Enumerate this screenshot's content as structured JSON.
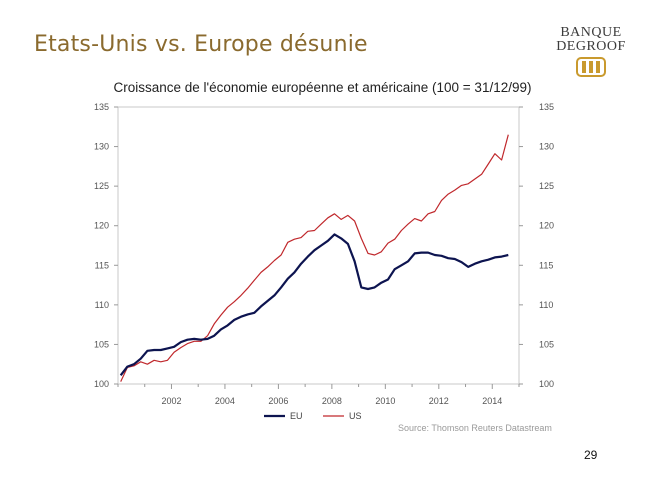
{
  "slide": {
    "title": "Etats-Unis vs. Europe désunie",
    "page_number": "29"
  },
  "logo": {
    "line1": "BANQUE",
    "line2": "DEGROOF",
    "accent_color": "#c99a2e"
  },
  "colors": {
    "title": "#8a6a2e",
    "eu": "#0d1450",
    "us": "#c0282c"
  },
  "chart_data": {
    "type": "line",
    "title": "Croissance de l'économie européenne et américaine (100 = 31/12/99)",
    "xlabel": "",
    "ylabel": "",
    "xlim": [
      2000.0,
      2015.0
    ],
    "ylim": [
      100,
      135
    ],
    "y_ticks": [
      100,
      105,
      110,
      115,
      120,
      125,
      130,
      135
    ],
    "y_tick_labels": [
      "100",
      "105",
      "110",
      "115",
      "120",
      "125",
      "130",
      "135"
    ],
    "x_ticks": [
      2002,
      2004,
      2006,
      2008,
      2010,
      2012,
      2014
    ],
    "x_tick_labels": [
      "2002",
      "2004",
      "2006",
      "2008",
      "2010",
      "2012",
      "2014"
    ],
    "y_axis_both_sides": true,
    "grid": false,
    "legend_position": "bottom-center",
    "source": "Source: Thomson Reuters Datastream",
    "series": [
      {
        "name": "EU",
        "color": "#0d1450",
        "x": [
          2000.1,
          2000.35,
          2000.6,
          2000.85,
          2001.1,
          2001.35,
          2001.6,
          2001.85,
          2002.1,
          2002.35,
          2002.6,
          2002.85,
          2003.1,
          2003.35,
          2003.6,
          2003.85,
          2004.1,
          2004.35,
          2004.6,
          2004.85,
          2005.1,
          2005.35,
          2005.6,
          2005.85,
          2006.1,
          2006.35,
          2006.6,
          2006.85,
          2007.1,
          2007.35,
          2007.6,
          2007.85,
          2008.1,
          2008.35,
          2008.6,
          2008.85,
          2009.1,
          2009.35,
          2009.6,
          2009.85,
          2010.1,
          2010.35,
          2010.6,
          2010.85,
          2011.1,
          2011.35,
          2011.6,
          2011.85,
          2012.1,
          2012.35,
          2012.6,
          2012.85,
          2013.1,
          2013.35,
          2013.6,
          2013.85,
          2014.1,
          2014.35,
          2014.6
        ],
        "values": [
          101.1,
          102.2,
          102.5,
          103.2,
          104.2,
          104.3,
          104.3,
          104.5,
          104.7,
          105.3,
          105.6,
          105.7,
          105.6,
          105.7,
          106.1,
          106.9,
          107.4,
          108.1,
          108.5,
          108.8,
          109.0,
          109.8,
          110.5,
          111.2,
          112.2,
          113.3,
          114.1,
          115.2,
          116.1,
          116.9,
          117.5,
          118.1,
          118.9,
          118.4,
          117.7,
          115.5,
          112.2,
          112.0,
          112.2,
          112.8,
          113.2,
          114.5,
          115.0,
          115.5,
          116.5,
          116.6,
          116.6,
          116.3,
          116.2,
          115.9,
          115.8,
          115.4,
          114.8,
          115.2,
          115.5,
          115.7,
          116.0,
          116.1,
          116.3
        ]
      },
      {
        "name": "US",
        "color": "#c0282c",
        "x": [
          2000.1,
          2000.35,
          2000.6,
          2000.85,
          2001.1,
          2001.35,
          2001.6,
          2001.85,
          2002.1,
          2002.35,
          2002.6,
          2002.85,
          2003.1,
          2003.35,
          2003.6,
          2003.85,
          2004.1,
          2004.35,
          2004.6,
          2004.85,
          2005.1,
          2005.35,
          2005.6,
          2005.85,
          2006.1,
          2006.35,
          2006.6,
          2006.85,
          2007.1,
          2007.35,
          2007.6,
          2007.85,
          2008.1,
          2008.35,
          2008.6,
          2008.85,
          2009.1,
          2009.35,
          2009.6,
          2009.85,
          2010.1,
          2010.35,
          2010.6,
          2010.85,
          2011.1,
          2011.35,
          2011.6,
          2011.85,
          2012.1,
          2012.35,
          2012.6,
          2012.85,
          2013.1,
          2013.35,
          2013.6,
          2013.85,
          2014.1,
          2014.35,
          2014.6
        ],
        "values": [
          100.3,
          102.1,
          102.3,
          102.8,
          102.5,
          103.0,
          102.8,
          103.0,
          104.0,
          104.6,
          105.1,
          105.4,
          105.4,
          106.1,
          107.6,
          108.7,
          109.7,
          110.4,
          111.2,
          112.1,
          113.1,
          114.1,
          114.8,
          115.6,
          116.3,
          117.9,
          118.3,
          118.5,
          119.3,
          119.4,
          120.2,
          121.0,
          121.5,
          120.8,
          121.3,
          120.6,
          118.4,
          116.5,
          116.3,
          116.7,
          117.8,
          118.3,
          119.4,
          120.2,
          120.9,
          120.6,
          121.5,
          121.8,
          123.2,
          124.0,
          124.5,
          125.1,
          125.3,
          125.9,
          126.5,
          127.8,
          129.1,
          128.3,
          131.5
        ]
      }
    ]
  }
}
